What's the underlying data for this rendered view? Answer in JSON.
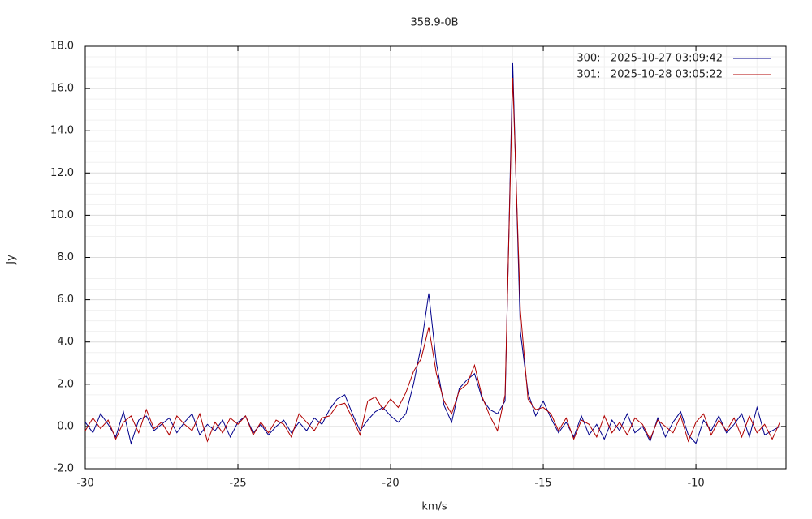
{
  "chart_data": {
    "type": "line",
    "title": "358.9-0B",
    "x_label": "km/s",
    "y_label": "Jy",
    "x_start": -30,
    "x_step": 0.25,
    "xlim": [
      -30,
      -7.05
    ],
    "xticks": [
      -30,
      -25,
      -20,
      -15,
      -10
    ],
    "ylim": [
      -2,
      18
    ],
    "yticks": [
      {
        "value": -2,
        "label": "-2.0"
      },
      {
        "value": 0,
        "label": "0.0"
      },
      {
        "value": 2,
        "label": "2.0"
      },
      {
        "value": 4,
        "label": "4.0"
      },
      {
        "value": 6,
        "label": "6.0"
      },
      {
        "value": 8,
        "label": "8.0"
      },
      {
        "value": 10,
        "label": "10.0"
      },
      {
        "value": 12,
        "label": "12.0"
      },
      {
        "value": 14,
        "label": "14.0"
      },
      {
        "value": 16,
        "label": "16.0"
      },
      {
        "value": 18,
        "label": "18.0"
      }
    ],
    "grid": true,
    "legend": "upper right",
    "series": [
      {
        "name": "300:   2025-10-27 03:09:42",
        "color": "#00008b",
        "values": [
          0.2,
          -0.3,
          0.6,
          0.1,
          -0.5,
          0.7,
          -0.8,
          0.3,
          0.5,
          -0.2,
          0.1,
          0.4,
          -0.3,
          0.2,
          0.6,
          -0.4,
          0.1,
          -0.2,
          0.3,
          -0.5,
          0.2,
          0.5,
          -0.3,
          0.1,
          -0.4,
          0.0,
          0.3,
          -0.3,
          0.2,
          -0.2,
          0.4,
          0.1,
          0.8,
          1.3,
          1.5,
          0.6,
          -0.2,
          0.3,
          0.7,
          0.9,
          0.5,
          0.2,
          0.6,
          2.0,
          3.8,
          6.3,
          3.0,
          1.0,
          0.2,
          1.8,
          2.2,
          2.5,
          1.3,
          0.8,
          0.6,
          1.2,
          17.2,
          4.5,
          1.6,
          0.5,
          1.2,
          0.4,
          -0.3,
          0.2,
          -0.5,
          0.5,
          -0.4,
          0.1,
          -0.6,
          0.3,
          -0.2,
          0.6,
          -0.3,
          0.0,
          -0.7,
          0.4,
          -0.5,
          0.2,
          0.7,
          -0.4,
          -0.8,
          0.3,
          -0.2,
          0.5,
          -0.3,
          0.1,
          0.6,
          -0.5,
          0.9,
          -0.4,
          -0.2,
          0.0
        ]
      },
      {
        "name": "301:   2025-10-28 03:05:22",
        "color": "#b00000",
        "values": [
          -0.2,
          0.4,
          -0.1,
          0.3,
          -0.6,
          0.2,
          0.5,
          -0.3,
          0.8,
          -0.1,
          0.2,
          -0.4,
          0.5,
          0.1,
          -0.2,
          0.6,
          -0.7,
          0.2,
          -0.3,
          0.4,
          0.1,
          0.5,
          -0.4,
          0.2,
          -0.3,
          0.3,
          0.1,
          -0.5,
          0.6,
          0.2,
          -0.2,
          0.4,
          0.5,
          1.0,
          1.1,
          0.4,
          -0.4,
          1.2,
          1.4,
          0.8,
          1.3,
          0.9,
          1.6,
          2.6,
          3.2,
          4.7,
          2.5,
          1.2,
          0.6,
          1.7,
          2.0,
          2.9,
          1.4,
          0.5,
          -0.2,
          1.5,
          16.5,
          5.5,
          1.3,
          0.8,
          0.9,
          0.6,
          -0.2,
          0.4,
          -0.6,
          0.3,
          0.1,
          -0.5,
          0.5,
          -0.3,
          0.2,
          -0.4,
          0.4,
          0.1,
          -0.6,
          0.3,
          0.0,
          -0.3,
          0.5,
          -0.7,
          0.2,
          0.6,
          -0.4,
          0.3,
          -0.2,
          0.4,
          -0.5,
          0.5,
          -0.3,
          0.1,
          -0.6,
          0.2
        ]
      }
    ]
  }
}
